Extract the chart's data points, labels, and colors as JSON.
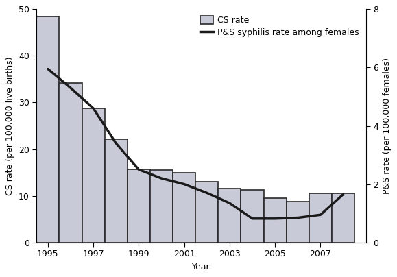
{
  "years": [
    1995,
    1996,
    1997,
    1998,
    1999,
    2000,
    2001,
    2002,
    2003,
    2004,
    2005,
    2006,
    2007,
    2008
  ],
  "cs_rate": [
    48.5,
    34.2,
    28.8,
    22.2,
    15.7,
    15.5,
    14.9,
    13.0,
    11.5,
    11.2,
    9.5,
    8.8,
    10.5,
    10.5
  ],
  "ps_rate": [
    5.95,
    5.3,
    4.6,
    3.4,
    2.5,
    2.2,
    2.0,
    1.7,
    1.35,
    0.82,
    0.82,
    0.85,
    0.95,
    1.65
  ],
  "bar_color": "#c8cad8",
  "bar_edgecolor": "#2a2a2a",
  "bar_linewidth": 1.2,
  "line_color": "#1a1a1a",
  "line_width": 2.5,
  "ylabel_left": "CS rate (per 100,000 live births)",
  "ylabel_right": "P&S rate (per 100,000 females)",
  "xlabel": "Year",
  "ylim_left": [
    0,
    50
  ],
  "ylim_right": [
    0,
    8
  ],
  "yticks_left": [
    0,
    10,
    20,
    30,
    40,
    50
  ],
  "yticks_right": [
    0,
    2,
    4,
    6,
    8
  ],
  "xtick_labels": [
    "1995",
    "1997",
    "1999",
    "2001",
    "2003",
    "2005",
    "2007"
  ],
  "xtick_positions": [
    1995,
    1997,
    1999,
    2001,
    2003,
    2005,
    2007
  ],
  "legend_labels": [
    "CS rate",
    "P&S syphilis rate among females"
  ],
  "background_color": "#ffffff",
  "axis_fontsize": 9,
  "tick_fontsize": 9,
  "legend_fontsize": 9
}
